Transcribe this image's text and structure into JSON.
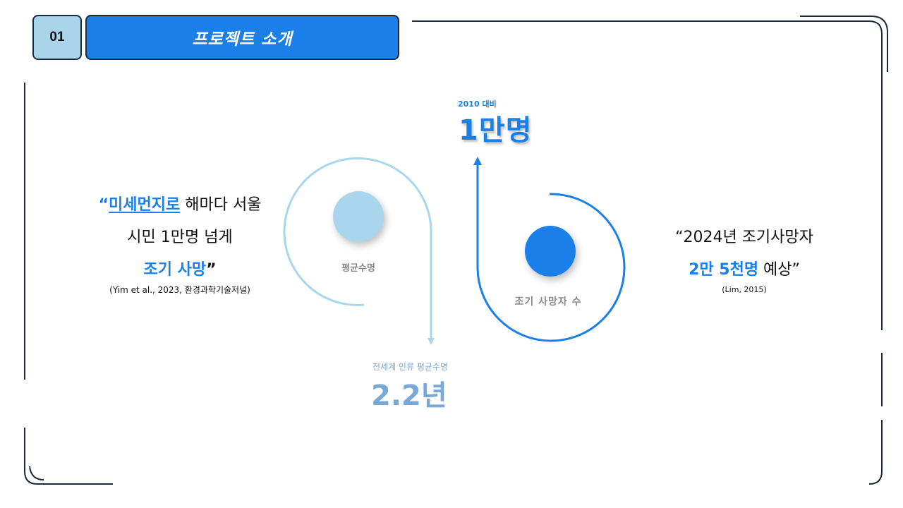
{
  "header": {
    "number": "01",
    "title": "프로젝트 소개"
  },
  "left_quote": {
    "open_mark": "“",
    "highlight": "미세먼지로",
    "line1_rest": " 해마다 서울",
    "line2": "시민 1만명 넘게",
    "line3_highlight": "조기 사망",
    "close_mark": "”",
    "citation": "(Yim et al., 2023, 환경과학기술저널)"
  },
  "right_quote": {
    "line1": "“2024년 조기사망자",
    "line2_highlight": "2만 5천명",
    "line2_rest": " 예상”",
    "citation": "(Lim, 2015)"
  },
  "stat_top": {
    "caption": "2010 대비",
    "value": "1만명"
  },
  "stat_bottom": {
    "caption": "전세계 인류 평균수명",
    "value": "2.2년"
  },
  "circle_labels": {
    "avg_life": "평균수명",
    "early_death": "조기 사망자 수"
  },
  "colors": {
    "accent": "#1a7fe8",
    "light_accent": "#a9d6ec",
    "muted_blue": "#7aa9d8",
    "frame": "#1b2a3a"
  }
}
